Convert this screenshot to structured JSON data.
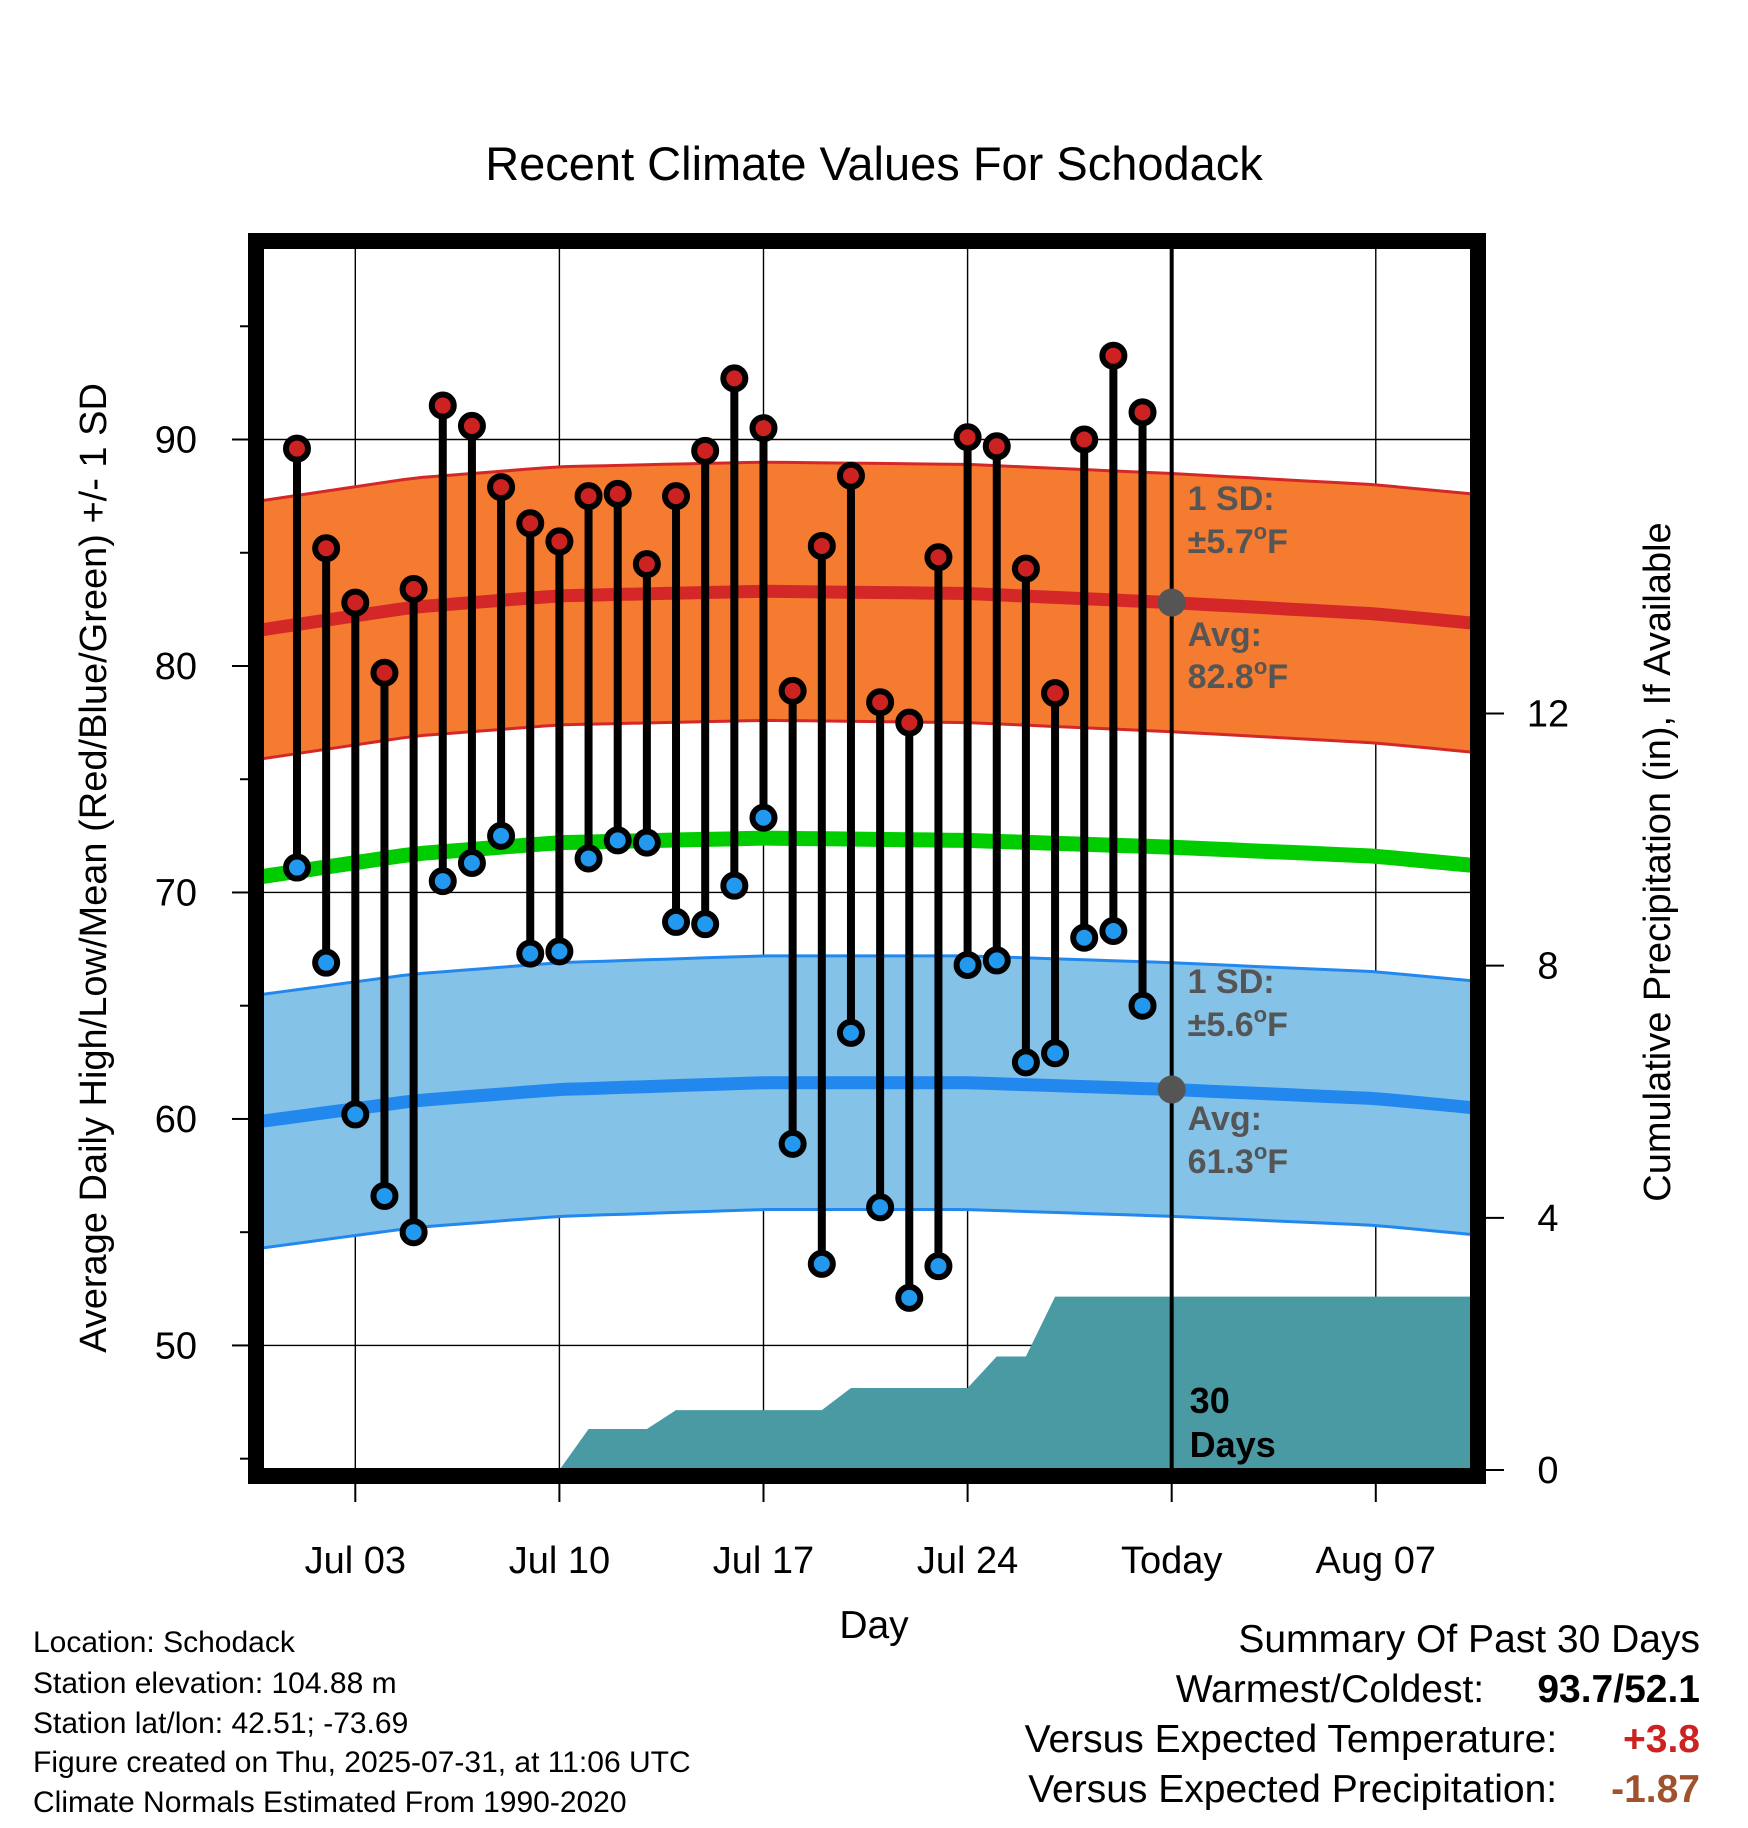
{
  "chart_data": {
    "type": "line",
    "title": "Recent Climate Values For Schodack",
    "xlabel": "Day",
    "ylabel_left": "Average Daily High/Low/Mean (Red/Blue/Green) +/- 1 SD",
    "ylabel_right": "Cumulative Precipitation (in), If Available",
    "y_left_range": [
      44.5,
      98.5
    ],
    "y_left_ticks": [
      "50",
      "60",
      "70",
      "80",
      "90"
    ],
    "y_right_range": [
      0,
      19.4
    ],
    "y_right_ticks": [
      "0",
      "4",
      "8",
      "12"
    ],
    "x_ticks": [
      {
        "day": 3,
        "label": "Jul 03"
      },
      {
        "day": 10,
        "label": "Jul 10"
      },
      {
        "day": 17,
        "label": "Jul 17"
      },
      {
        "day": 24,
        "label": "Jul 24"
      },
      {
        "day": 31,
        "label": "Today"
      },
      {
        "day": 38,
        "label": "Aug 07"
      }
    ],
    "x_range": [
      -0.2,
      41.3
    ],
    "today_day": 31,
    "days": [
      1,
      2,
      3,
      4,
      5,
      6,
      7,
      8,
      9,
      10,
      11,
      12,
      13,
      14,
      15,
      16,
      17,
      18,
      19,
      20,
      21,
      22,
      23,
      24,
      25,
      26,
      27,
      28,
      29,
      30
    ],
    "highs": [
      89.6,
      85.2,
      82.8,
      79.7,
      83.4,
      91.5,
      90.6,
      87.9,
      86.3,
      85.5,
      87.5,
      87.6,
      84.5,
      87.5,
      89.5,
      92.7,
      90.5,
      78.9,
      85.3,
      88.4,
      78.4,
      77.5,
      84.8,
      90.1,
      89.7,
      84.3,
      78.8,
      90.0,
      93.7,
      91.2
    ],
    "lows": [
      71.1,
      66.9,
      60.2,
      56.6,
      55.0,
      70.5,
      71.3,
      72.5,
      67.3,
      67.4,
      71.5,
      72.3,
      72.2,
      68.7,
      68.6,
      70.3,
      73.3,
      58.9,
      53.6,
      63.8,
      56.1,
      52.1,
      53.5,
      66.8,
      67.0,
      62.5,
      62.9,
      68.0,
      68.3,
      65.0
    ],
    "normal_high": {
      "days": [
        -0.2,
        5,
        10,
        17,
        24,
        31,
        38,
        41.3
      ],
      "avg": [
        81.6,
        82.6,
        83.1,
        83.3,
        83.2,
        82.8,
        82.3,
        81.9
      ],
      "sd": 5.7
    },
    "normal_low": {
      "days": [
        -0.2,
        5,
        10,
        17,
        24,
        31,
        38,
        41.3
      ],
      "avg": [
        59.9,
        60.8,
        61.3,
        61.6,
        61.6,
        61.3,
        60.9,
        60.5
      ],
      "sd": 5.6
    },
    "normal_mean": {
      "days": [
        -0.2,
        5,
        10,
        17,
        24,
        31,
        38,
        41.3
      ],
      "avg": [
        70.7,
        71.7,
        72.2,
        72.4,
        72.3,
        72.0,
        71.6,
        71.2
      ]
    },
    "precip": {
      "days": [
        -0.2,
        10,
        11,
        13,
        14,
        19,
        20,
        24,
        25,
        26,
        27,
        41.3
      ],
      "cumulative": [
        0,
        0,
        0.65,
        0.65,
        0.95,
        0.95,
        1.3,
        1.3,
        1.8,
        1.8,
        2.75,
        2.75
      ]
    },
    "annotations": {
      "high_sd_label": "1 SD:",
      "high_sd_value": "±5.7°F",
      "high_avg_label": "Avg:",
      "high_avg_value": "82.8°F",
      "low_sd_label": "1 SD:",
      "low_sd_value": "±5.6°F",
      "low_avg_label": "Avg:",
      "low_avg_value": "61.3°F",
      "days_count": "30",
      "days_word": "Days"
    },
    "colors": {
      "high_band": "#f47b30",
      "high_line": "#d42828",
      "low_band": "#85c2e8",
      "low_line": "#2288ee",
      "mean_line": "#00cc00",
      "high_dot": "#cc2222",
      "low_dot": "#2299ee",
      "precip_fill": "#4a9aa3",
      "avg_marker": "#555555",
      "annotation_text": "#555555"
    }
  },
  "info": {
    "location": "Location: Schodack",
    "elevation": "Station elevation: 104.88 m",
    "latlon": "Station lat/lon: 42.51; -73.69",
    "created": "Figure created on Thu, 2025-07-31, at 11:06 UTC",
    "normals": "Climate Normals Estimated From 1990-2020"
  },
  "summary": {
    "title": "Summary Of Past 30 Days",
    "warmest_label": "Warmest/Coldest:",
    "warmest_value": "93.7/52.1",
    "temp_label": "Versus Expected Temperature:",
    "temp_value": "+3.8",
    "temp_color": "#cc2222",
    "precip_label": "Versus Expected Precipitation:",
    "precip_value": "-1.87",
    "precip_color": "#a0522d"
  }
}
